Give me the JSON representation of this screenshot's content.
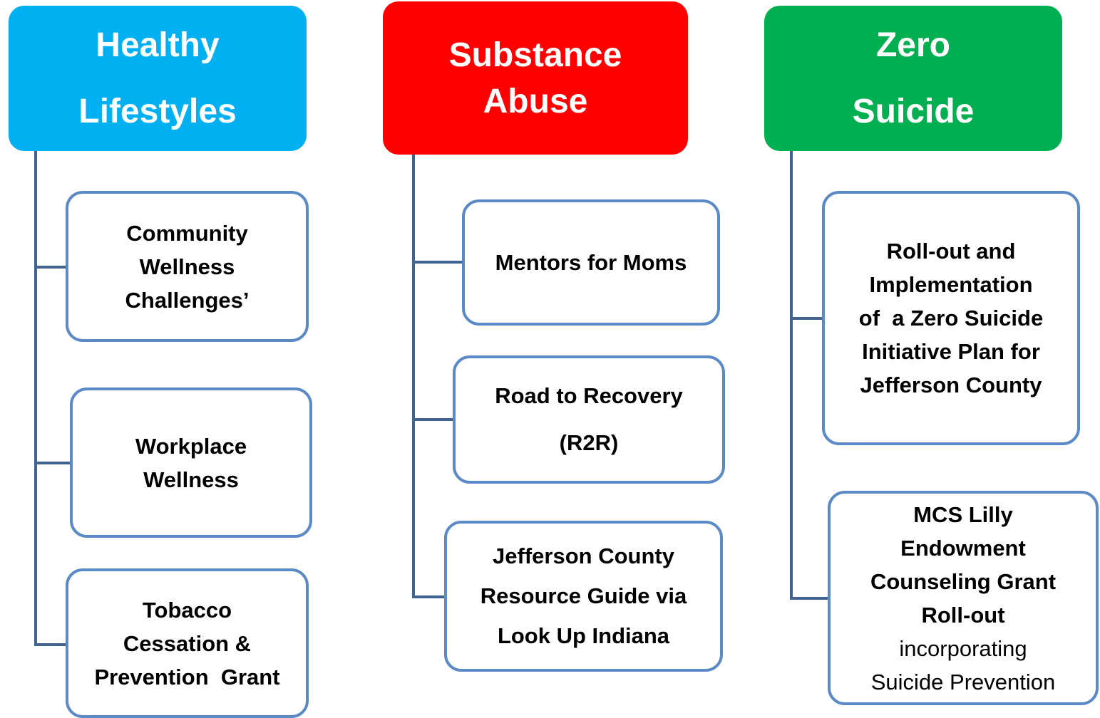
{
  "columns": [
    {
      "header": [
        "Healthy",
        "Lifestyles"
      ],
      "items": [
        {
          "lines": [
            "Community",
            "Wellness",
            "Challenges’"
          ]
        },
        {
          "lines": [
            "Workplace",
            "Wellness"
          ]
        },
        {
          "lines": [
            "Tobacco",
            "Cessation &",
            "Prevention  Grant"
          ]
        }
      ]
    },
    {
      "header": [
        "Substance",
        "Abuse"
      ],
      "items": [
        {
          "lines": [
            "Mentors for Moms"
          ]
        },
        {
          "lines": [
            "Road to Recovery",
            "(R2R)"
          ]
        },
        {
          "lines": [
            "Jefferson County",
            "Resource Guide via",
            "Look Up Indiana"
          ]
        }
      ]
    },
    {
      "header": [
        "Zero",
        "Suicide"
      ],
      "items": [
        {
          "lines": [
            "Roll-out and",
            "Implementation",
            "of  a Zero Suicide",
            "Initiative Plan for",
            "Jefferson County"
          ]
        },
        {
          "lines": [
            "MCS Lilly",
            "Endowment",
            "Counseling Grant",
            "Roll-out"
          ],
          "extra_lines": [
            "incorporating",
            "Suicide Prevention"
          ]
        }
      ]
    }
  ]
}
